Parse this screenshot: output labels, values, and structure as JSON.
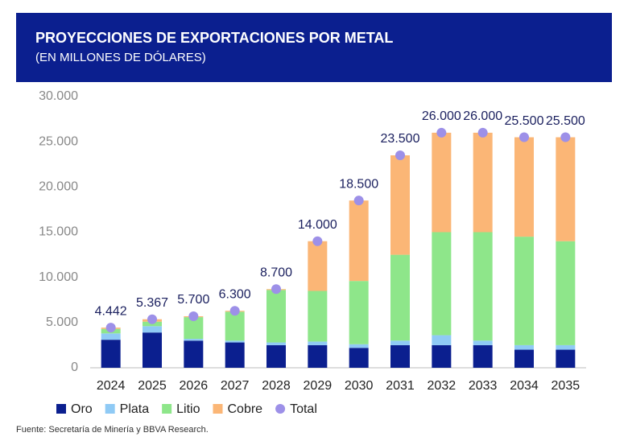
{
  "chart_data": {
    "type": "bar",
    "stacked": true,
    "title": "PROYECCIONES DE EXPORTACIONES POR METAL",
    "subtitle": "(EN MILLONES DE DÓLARES)",
    "source": "Fuente: Secretaría de Minería y BBVA Research.",
    "categories": [
      "2024",
      "2025",
      "2026",
      "2027",
      "2028",
      "2029",
      "2030",
      "2031",
      "2032",
      "2033",
      "2034",
      "2035"
    ],
    "series": [
      {
        "name": "Oro",
        "color": "#0b1f8f",
        "values": [
          3100,
          3900,
          3000,
          2800,
          2500,
          2500,
          2200,
          2500,
          2500,
          2500,
          2000,
          2000
        ]
      },
      {
        "name": "Plata",
        "color": "#8fcaf5",
        "values": [
          700,
          700,
          200,
          200,
          300,
          400,
          400,
          500,
          1100,
          500,
          500,
          500
        ]
      },
      {
        "name": "Litio",
        "color": "#8ee68a",
        "values": [
          500,
          500,
          2400,
          3200,
          5800,
          5600,
          7000,
          9500,
          11400,
          12000,
          12000,
          11500
        ]
      },
      {
        "name": "Cobre",
        "color": "#fbb676",
        "values": [
          142,
          267,
          100,
          100,
          100,
          5500,
          8900,
          11000,
          11000,
          11000,
          11000,
          11500
        ]
      },
      {
        "name": "Total",
        "color": "#9d90e8",
        "style": "marker",
        "values": [
          4442,
          5367,
          5700,
          6300,
          8700,
          14000,
          18500,
          23500,
          26000,
          26000,
          25500,
          25500
        ],
        "value_labels": [
          "4.442",
          "5.367",
          "5.700",
          "6.300",
          "8.700",
          "14.000",
          "18.500",
          "23.500",
          "26.000",
          "26.000",
          "25.500",
          "25.500"
        ]
      }
    ],
    "ylim": [
      0,
      30000
    ],
    "yticks": [
      0,
      {
        "value": 5000,
        "label": "5.000"
      },
      {
        "value": 10000,
        "label": "10.000"
      },
      {
        "value": 15000,
        "label": "15.000"
      },
      {
        "value": 20000,
        "label": "20.000"
      },
      {
        "value": 25000,
        "label": "25.000"
      },
      {
        "value": 30000,
        "label": "30.000"
      }
    ],
    "legend": "bottom"
  }
}
